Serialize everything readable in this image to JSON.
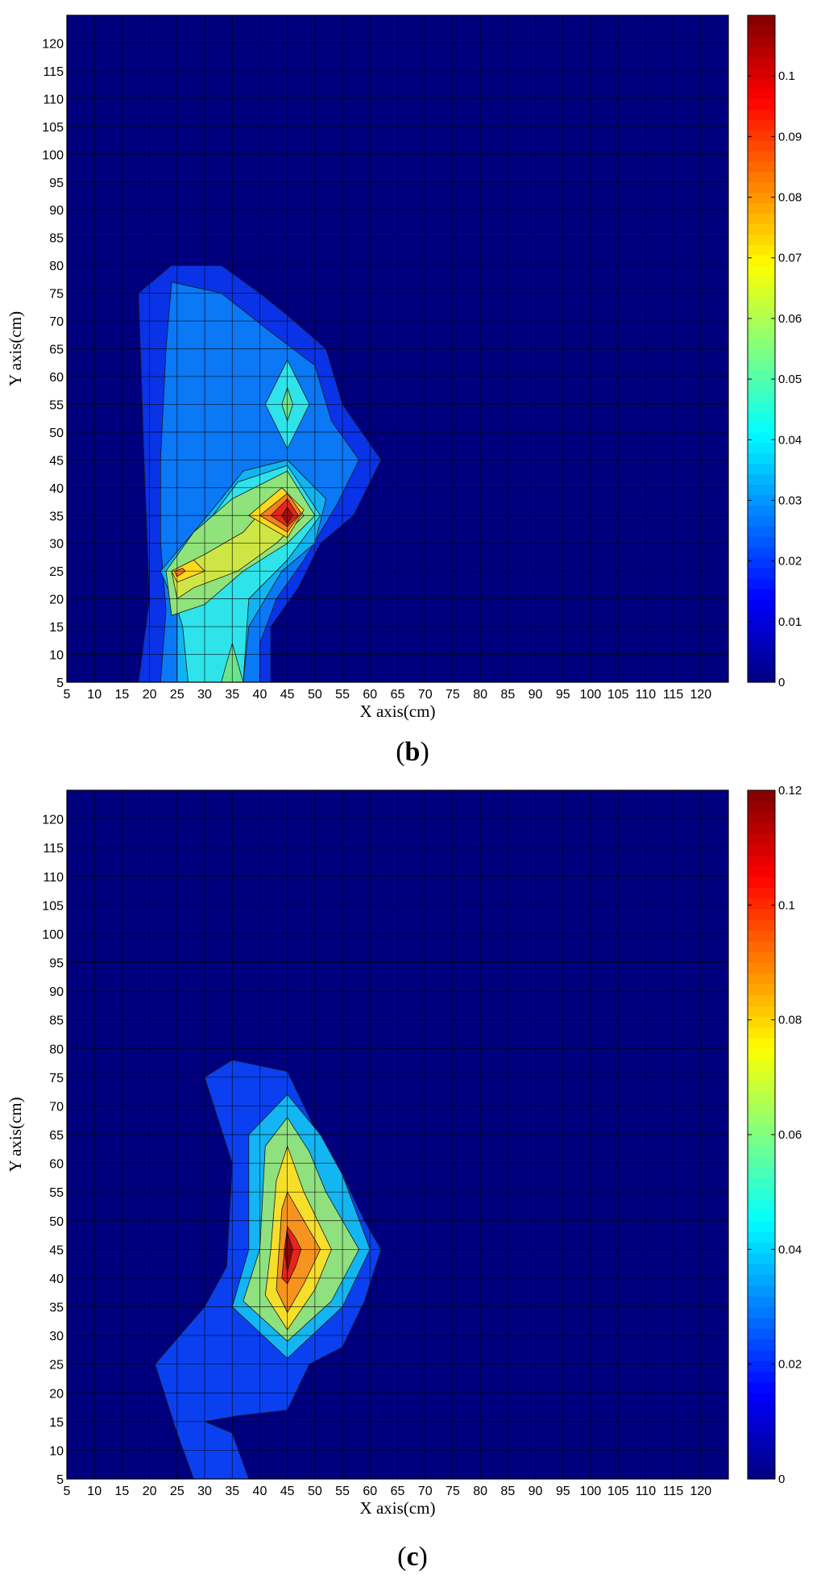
{
  "chart_data": [
    {
      "type": "heatmap",
      "subtype": "filled-contour",
      "caption_letter": "b",
      "xlabel": "X axis(cm)",
      "ylabel": "Y axis(cm)",
      "xlim": [
        5,
        125
      ],
      "ylim": [
        5,
        125
      ],
      "xticks": [
        5,
        10,
        15,
        20,
        25,
        30,
        35,
        40,
        45,
        50,
        55,
        60,
        65,
        70,
        75,
        80,
        85,
        90,
        95,
        100,
        105,
        110,
        115,
        120
      ],
      "yticks": [
        5,
        10,
        15,
        20,
        25,
        30,
        35,
        40,
        45,
        50,
        55,
        60,
        65,
        70,
        75,
        80,
        85,
        90,
        95,
        100,
        105,
        110,
        115,
        120
      ],
      "grid": true,
      "colorbar": {
        "min": 0,
        "max": 0.11,
        "ticks": [
          0,
          0.01,
          0.02,
          0.03,
          0.04,
          0.05,
          0.06,
          0.07,
          0.08,
          0.09,
          0.1
        ]
      },
      "peaks": [
        {
          "x": 45,
          "y": 35,
          "value": 0.11
        },
        {
          "x": 25,
          "y": 25,
          "value": 0.085
        },
        {
          "x": 45,
          "y": 55,
          "value": 0.045
        },
        {
          "x": 35,
          "y": 5,
          "value": 0.05
        }
      ],
      "levels": [
        {
          "value": 0.005,
          "color": "#0a32e6",
          "polygons": [
            [
              [
                18,
                5
              ],
              [
                20,
                20
              ],
              [
                19,
                45
              ],
              [
                18,
                75
              ],
              [
                24,
                80
              ],
              [
                33,
                80
              ],
              [
                40,
                75
              ],
              [
                45,
                71
              ],
              [
                52,
                65
              ],
              [
                55,
                55
              ],
              [
                62,
                45
              ],
              [
                57,
                35
              ],
              [
                51,
                30
              ],
              [
                47,
                22
              ],
              [
                42,
                15
              ],
              [
                42,
                5
              ]
            ]
          ]
        },
        {
          "value": 0.02,
          "color": "#0b78f5",
          "polygons": [
            [
              [
                22,
                5
              ],
              [
                23,
                18
              ],
              [
                22,
                30
              ],
              [
                22,
                45
              ],
              [
                23,
                65
              ],
              [
                24,
                77
              ],
              [
                33,
                75
              ],
              [
                42,
                68
              ],
              [
                50,
                62
              ],
              [
                53,
                52
              ],
              [
                58,
                45
              ],
              [
                54,
                37
              ],
              [
                48,
                27
              ],
              [
                43,
                20
              ],
              [
                40,
                12
              ],
              [
                40,
                5
              ]
            ]
          ]
        },
        {
          "value": 0.03,
          "color": "#11b4f0",
          "polygons": [
            [
              [
                25,
                5
              ],
              [
                25,
                18
              ],
              [
                22,
                25
              ],
              [
                28,
                32
              ],
              [
                33,
                38
              ],
              [
                37,
                43
              ],
              [
                45,
                45
              ],
              [
                52,
                38
              ],
              [
                50,
                30
              ],
              [
                44,
                25
              ],
              [
                38,
                15
              ],
              [
                37,
                5
              ]
            ]
          ]
        },
        {
          "value": 0.04,
          "color": "#2fe3ea",
          "polygons": [
            [
              [
                27,
                5
              ],
              [
                26,
                15
              ],
              [
                23,
                25
              ],
              [
                30,
                33
              ],
              [
                36,
                41
              ],
              [
                45,
                44
              ],
              [
                51,
                35
              ],
              [
                45,
                27
              ],
              [
                38,
                20
              ],
              [
                37,
                5
              ]
            ]
          ]
        },
        {
          "value": 0.05,
          "color": "#6be58d",
          "polygons": [
            [
              [
                33,
                5
              ],
              [
                35,
                12
              ],
              [
                37,
                5
              ]
            ]
          ]
        },
        {
          "value": 0.035,
          "color": "#2fe3ea",
          "polygons": [
            [
              [
                41,
                55
              ],
              [
                45,
                63
              ],
              [
                49,
                55
              ],
              [
                45,
                47
              ]
            ]
          ]
        },
        {
          "value": 0.045,
          "color": "#6be58d",
          "polygons": [
            [
              [
                44,
                55
              ],
              [
                45,
                58
              ],
              [
                46,
                55
              ],
              [
                45,
                52
              ]
            ]
          ]
        },
        {
          "value": 0.05,
          "color": "#90e37a",
          "polygons": [
            [
              [
                24,
                17
              ],
              [
                23,
                25
              ],
              [
                28,
                32
              ],
              [
                35,
                38
              ],
              [
                45,
                43
              ],
              [
                50,
                35
              ],
              [
                45,
                30
              ],
              [
                37,
                25
              ],
              [
                30,
                19
              ]
            ]
          ]
        },
        {
          "value": 0.06,
          "color": "#cde645",
          "polygons": [
            [
              [
                25,
                20
              ],
              [
                24,
                25
              ],
              [
                30,
                28
              ],
              [
                37,
                32
              ],
              [
                44,
                40
              ],
              [
                48,
                35
              ],
              [
                43,
                30
              ],
              [
                36,
                25
              ],
              [
                28,
                22
              ]
            ]
          ]
        },
        {
          "value": 0.07,
          "color": "#ffd81c",
          "polygons": [
            [
              [
                25,
                23
              ],
              [
                24,
                25
              ],
              [
                28,
                27
              ],
              [
                30,
                25
              ]
            ]
          ]
        },
        {
          "value": 0.08,
          "color": "#f77f1e",
          "polygons": [
            [
              [
                25,
                24
              ],
              [
                24.5,
                25
              ],
              [
                26,
                25.5
              ],
              [
                26.5,
                25
              ]
            ]
          ]
        },
        {
          "value": 0.07,
          "color": "#ffd81c",
          "polygons": [
            [
              [
                38,
                35
              ],
              [
                44,
                40
              ],
              [
                48,
                36
              ],
              [
                45,
                31
              ]
            ]
          ]
        },
        {
          "value": 0.08,
          "color": "#f77f1e",
          "polygons": [
            [
              [
                40,
                35
              ],
              [
                45,
                39
              ],
              [
                47.5,
                35.5
              ],
              [
                45,
                32
              ]
            ]
          ]
        },
        {
          "value": 0.09,
          "color": "#e8251a",
          "polygons": [
            [
              [
                42,
                35
              ],
              [
                45,
                38
              ],
              [
                47,
                35
              ],
              [
                45,
                33
              ]
            ]
          ]
        },
        {
          "value": 0.1,
          "color": "#a80e0e",
          "polygons": [
            [
              [
                44,
                35
              ],
              [
                45,
                36.5
              ],
              [
                46,
                35
              ],
              [
                45,
                33.5
              ]
            ]
          ]
        }
      ]
    },
    {
      "type": "heatmap",
      "subtype": "filled-contour",
      "caption_letter": "c",
      "xlabel": "X axis(cm)",
      "ylabel": "Y axis(cm)",
      "xlim": [
        5,
        125
      ],
      "ylim": [
        5,
        125
      ],
      "xticks": [
        5,
        10,
        15,
        20,
        25,
        30,
        35,
        40,
        45,
        50,
        55,
        60,
        65,
        70,
        75,
        80,
        85,
        90,
        95,
        100,
        105,
        110,
        115,
        120
      ],
      "yticks": [
        5,
        10,
        15,
        20,
        25,
        30,
        35,
        40,
        45,
        50,
        55,
        60,
        65,
        70,
        75,
        80,
        85,
        90,
        95,
        100,
        105,
        110,
        115,
        120
      ],
      "grid": true,
      "colorbar": {
        "min": 0,
        "max": 0.12,
        "ticks": [
          0,
          0.02,
          0.04,
          0.06,
          0.08,
          0.1,
          0.12
        ]
      },
      "peaks": [
        {
          "x": 45,
          "y": 45,
          "value": 0.12
        }
      ],
      "levels": [
        {
          "value": 0.005,
          "color": "#0a40f0",
          "polygons": [
            [
              [
                28,
                5
              ],
              [
                25,
                13
              ],
              [
                21,
                25
              ],
              [
                30,
                35
              ],
              [
                34,
                42
              ],
              [
                35,
                60
              ],
              [
                30,
                75
              ],
              [
                35,
                78
              ],
              [
                45,
                76
              ],
              [
                50,
                66
              ],
              [
                55,
                58
              ],
              [
                59,
                50
              ],
              [
                62,
                45
              ],
              [
                59,
                36
              ],
              [
                55,
                28
              ],
              [
                49,
                25
              ],
              [
                45,
                17
              ],
              [
                36,
                16
              ],
              [
                30,
                15
              ],
              [
                35,
                13
              ],
              [
                38,
                5
              ]
            ]
          ]
        },
        {
          "value": 0.02,
          "color": "#13b5f2",
          "polygons": [
            [
              [
                35,
                35
              ],
              [
                38,
                45
              ],
              [
                38,
                65
              ],
              [
                45,
                72
              ],
              [
                51,
                65
              ],
              [
                55,
                58
              ],
              [
                60,
                45
              ],
              [
                55,
                35
              ],
              [
                45,
                26
              ]
            ]
          ]
        },
        {
          "value": 0.04,
          "color": "#8fe07f",
          "polygons": [
            [
              [
                37,
                36
              ],
              [
                40,
                45
              ],
              [
                41,
                63
              ],
              [
                45,
                68
              ],
              [
                49,
                62
              ],
              [
                52,
                55
              ],
              [
                58,
                45
              ],
              [
                53,
                36
              ],
              [
                45,
                29
              ]
            ]
          ]
        },
        {
          "value": 0.06,
          "color": "#f5df2a",
          "polygons": [
            [
              [
                41,
                37
              ],
              [
                42,
                45
              ],
              [
                43,
                57
              ],
              [
                45,
                63
              ],
              [
                48,
                55
              ],
              [
                53,
                45
              ],
              [
                50,
                38
              ],
              [
                45,
                31
              ]
            ]
          ]
        },
        {
          "value": 0.08,
          "color": "#f7941e",
          "polygons": [
            [
              [
                43,
                38
              ],
              [
                43.5,
                45
              ],
              [
                44,
                52
              ],
              [
                45,
                55
              ],
              [
                48,
                50
              ],
              [
                51,
                45
              ],
              [
                48,
                39
              ],
              [
                45,
                34
              ]
            ]
          ]
        },
        {
          "value": 0.1,
          "color": "#e8241a",
          "polygons": [
            [
              [
                44,
                40
              ],
              [
                44.5,
                45
              ],
              [
                45,
                49
              ],
              [
                46.5,
                47
              ],
              [
                47.5,
                45
              ],
              [
                46.5,
                42
              ],
              [
                45,
                39
              ]
            ]
          ]
        },
        {
          "value": 0.12,
          "color": "#8b0a0a",
          "polygons": [
            [
              [
                45,
                41
              ],
              [
                44.5,
                45
              ],
              [
                45,
                48
              ],
              [
                46,
                45
              ]
            ]
          ]
        }
      ]
    }
  ]
}
